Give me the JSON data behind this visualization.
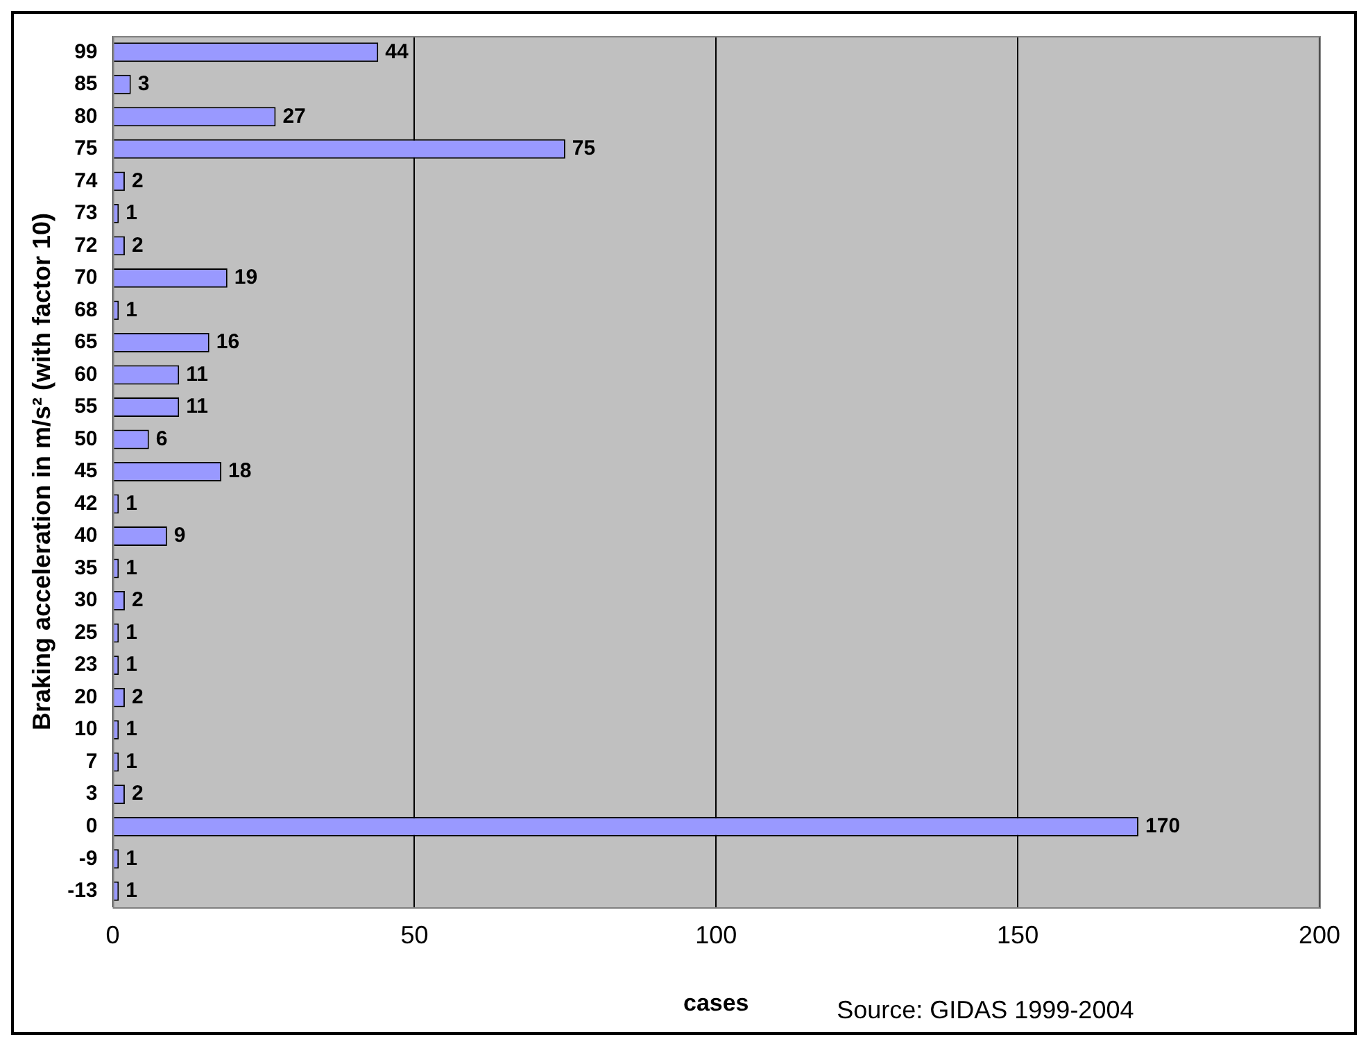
{
  "chart_data": {
    "type": "bar",
    "orientation": "horizontal",
    "xlabel": "cases",
    "ylabel": "Braking acceleration in m/s² (with factor 10)",
    "categories": [
      "99",
      "85",
      "80",
      "75",
      "74",
      "73",
      "72",
      "70",
      "68",
      "65",
      "60",
      "55",
      "50",
      "45",
      "42",
      "40",
      "35",
      "30",
      "25",
      "23",
      "20",
      "10",
      "7",
      "3",
      "0",
      "-9",
      "-13"
    ],
    "values": [
      44,
      3,
      27,
      75,
      2,
      1,
      2,
      19,
      1,
      16,
      11,
      11,
      6,
      18,
      1,
      9,
      1,
      2,
      1,
      1,
      2,
      1,
      1,
      2,
      170,
      1,
      1
    ],
    "color": "#9999ff",
    "xlim": [
      0,
      200
    ],
    "xticks": [
      0,
      50,
      100,
      150,
      200
    ],
    "grid": "x",
    "data_labels": true,
    "legend": false,
    "annotations": [
      "Source: GIDAS 1999-2004"
    ]
  }
}
